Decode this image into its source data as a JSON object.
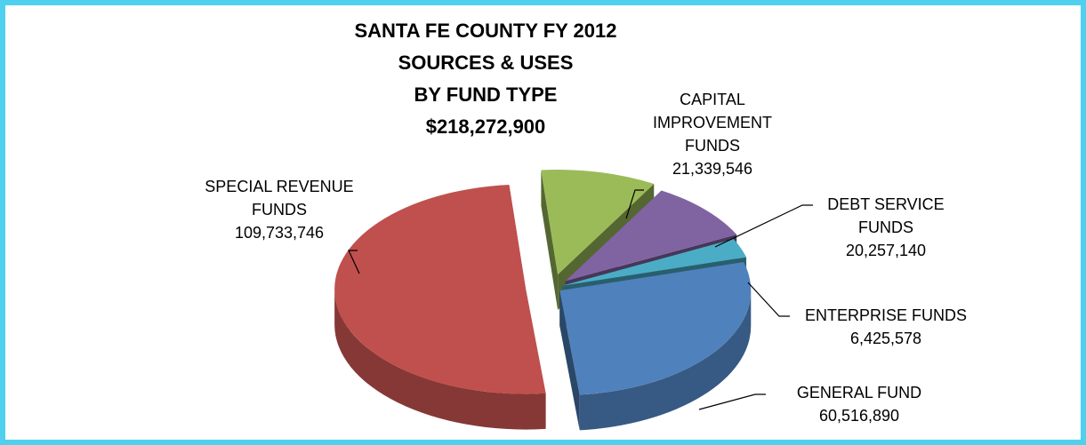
{
  "chart_data": {
    "type": "pie",
    "title": [
      "SANTA FE COUNTY FY 2012",
      "SOURCES & USES",
      "BY FUND TYPE",
      "$218,272,900"
    ],
    "categories": [
      "CAPITAL IMPROVEMENT FUNDS",
      "DEBT SERVICE FUNDS",
      "ENTERPRISE FUNDS",
      "GENERAL FUND",
      "SPECIAL REVENUE FUNDS"
    ],
    "values": [
      21339546,
      20257140,
      6425578,
      60516890,
      109733746
    ],
    "value_labels": [
      "21,339,546",
      "20,257,140",
      "6,425,578",
      "60,516,890",
      "109,733,746"
    ],
    "colors": [
      "#9bbb59",
      "#8064a2",
      "#4bacc6",
      "#4f81bd",
      "#c0504d"
    ]
  }
}
